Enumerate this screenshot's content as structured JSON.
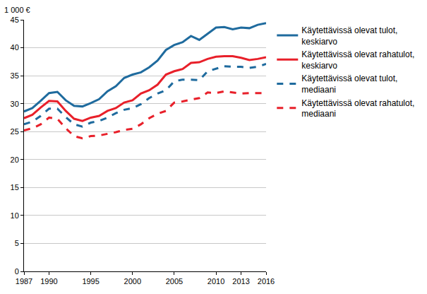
{
  "chart_data": {
    "type": "line",
    "ylabel": "1 000 €",
    "x": [
      1987,
      1988,
      1989,
      1990,
      1991,
      1992,
      1993,
      1994,
      1995,
      1996,
      1997,
      1998,
      1999,
      2000,
      2001,
      2002,
      2003,
      2004,
      2005,
      2006,
      2007,
      2008,
      2009,
      2010,
      2011,
      2012,
      2013,
      2014,
      2015,
      2016
    ],
    "series": [
      {
        "name": "Käytettävissä olevat tulot, keskiarvo",
        "color": "#1f6b9e",
        "line_style": "solid",
        "values": [
          28.6,
          29.2,
          30.5,
          31.9,
          32.1,
          30.6,
          29.6,
          29.5,
          30.1,
          30.8,
          32.2,
          33.1,
          34.6,
          35.2,
          35.6,
          36.5,
          37.7,
          39.6,
          40.5,
          41.0,
          42.1,
          41.4,
          42.5,
          43.6,
          43.7,
          43.3,
          43.6,
          43.5,
          44.1,
          44.4
        ]
      },
      {
        "name": "Käytettävissä olevat rahatulot, keskiarvo",
        "color": "#e8202a",
        "line_style": "solid",
        "values": [
          27.4,
          28.0,
          29.3,
          30.5,
          30.4,
          28.7,
          27.3,
          26.9,
          27.5,
          27.8,
          28.7,
          29.2,
          30.2,
          30.6,
          31.8,
          32.4,
          33.4,
          35.2,
          35.8,
          36.2,
          37.3,
          37.4,
          38.0,
          38.4,
          38.5,
          38.5,
          38.2,
          37.8,
          38.0,
          38.3
        ]
      },
      {
        "name": "Käytettävissä olevat tulot, mediaani",
        "color": "#1f6b9e",
        "line_style": "dash",
        "values": [
          26.3,
          26.8,
          27.8,
          29.1,
          29.1,
          27.6,
          26.3,
          25.9,
          26.6,
          26.9,
          27.5,
          28.3,
          28.9,
          29.2,
          29.9,
          31.0,
          31.8,
          32.4,
          34.0,
          34.3,
          34.3,
          34.2,
          35.8,
          36.3,
          36.7,
          36.6,
          36.6,
          36.4,
          36.6,
          37.1
        ]
      },
      {
        "name": "Käytettävissä olevat rahatulot, mediaani",
        "color": "#e8202a",
        "line_style": "dash",
        "values": [
          25.2,
          25.6,
          26.3,
          27.5,
          27.3,
          25.6,
          24.2,
          23.8,
          24.2,
          24.3,
          24.6,
          24.9,
          25.3,
          25.5,
          26.3,
          27.4,
          28.2,
          28.7,
          30.2,
          30.4,
          30.7,
          31.0,
          32.0,
          31.9,
          32.2,
          32.0,
          31.8,
          31.9,
          31.9,
          31.9
        ]
      }
    ],
    "xlim": [
      1987,
      2016
    ],
    "xticks": [
      1987,
      1990,
      1995,
      2000,
      2005,
      2010,
      2013,
      2016
    ],
    "ylim": [
      0,
      45
    ],
    "yticks": [
      0,
      5,
      10,
      15,
      20,
      25,
      30,
      35,
      40,
      45
    ],
    "grid": true,
    "legend": "right"
  }
}
